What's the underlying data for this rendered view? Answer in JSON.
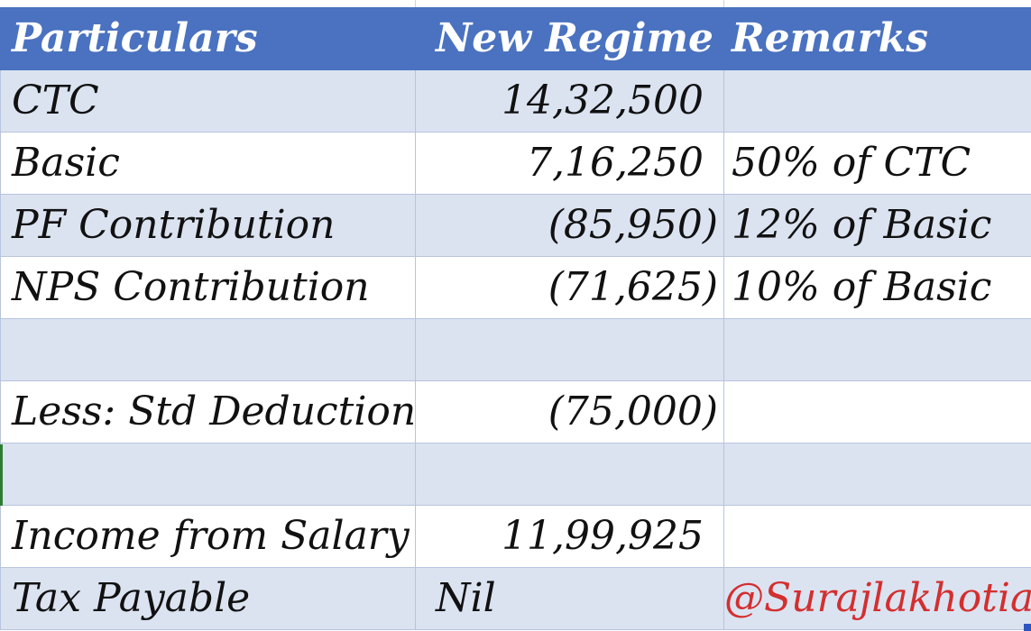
{
  "headers": {
    "particulars": "Particulars",
    "new_regime": "New Regime",
    "remarks": "Remarks"
  },
  "rows": [
    {
      "particular": "CTC",
      "value": "14,32,500",
      "remark": ""
    },
    {
      "particular": "Basic",
      "value": "7,16,250",
      "remark": "50% of CTC"
    },
    {
      "particular": "PF Contribution",
      "value": "(85,950)",
      "remark": "12% of Basic"
    },
    {
      "particular": "NPS Contribution",
      "value": "(71,625)",
      "remark": "10% of Basic"
    },
    {
      "particular": "",
      "value": "",
      "remark": ""
    },
    {
      "particular": "Less: Std Deduction",
      "value": "(75,000)",
      "remark": ""
    },
    {
      "particular": "",
      "value": "",
      "remark": ""
    },
    {
      "particular": "Income from Salary",
      "value": "11,99,925",
      "remark": ""
    },
    {
      "particular": "Tax Payable",
      "value": "Nil",
      "remark": "@Surajlakhotia"
    }
  ],
  "colors": {
    "header_bg": "#4a72c0",
    "header_text": "#ffffff",
    "band_bg": "#dbe3f1",
    "handle_text": "#d32f2f"
  }
}
